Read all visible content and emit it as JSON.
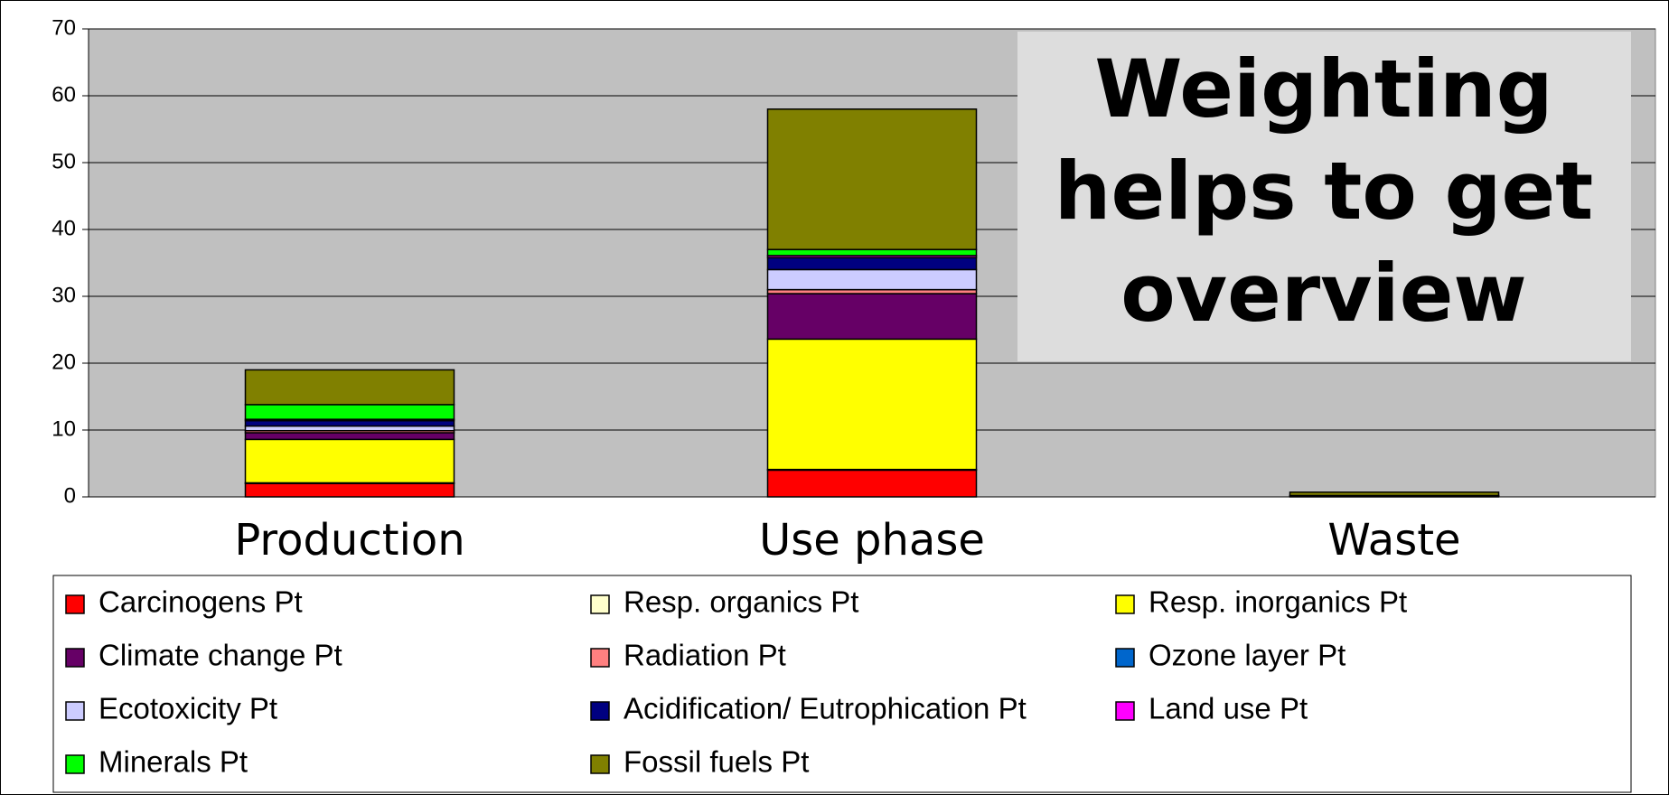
{
  "chart_data": {
    "type": "bar",
    "stacked": true,
    "annotation": [
      "Weighting",
      "helps to get",
      "overview"
    ],
    "categories": [
      "Production",
      "Use phase",
      "Waste"
    ],
    "ylim": [
      0,
      70
    ],
    "yticks": [
      0,
      10,
      20,
      30,
      40,
      50,
      60,
      70
    ],
    "grid": true,
    "series": [
      {
        "name": "Carcinogens Pt",
        "color": "#ff0000",
        "values": [
          2,
          4,
          0.1
        ]
      },
      {
        "name": "Resp. organics Pt",
        "color": "#ffffcc",
        "values": [
          0.1,
          0.1,
          0
        ]
      },
      {
        "name": "Resp. inorganics Pt",
        "color": "#ffff00",
        "values": [
          6.5,
          19.5,
          0.05
        ]
      },
      {
        "name": "Climate change Pt",
        "color": "#660066",
        "values": [
          1,
          6.8,
          0.05
        ]
      },
      {
        "name": "Radiation Pt",
        "color": "#ff8080",
        "values": [
          0.3,
          0.6,
          0
        ]
      },
      {
        "name": "Ozone layer Pt",
        "color": "#0066cc",
        "values": [
          0,
          0,
          0
        ]
      },
      {
        "name": "Ecotoxicity Pt",
        "color": "#ccccff",
        "values": [
          0.7,
          3,
          0
        ]
      },
      {
        "name": "Acidification/ Eutrophication Pt",
        "color": "#000080",
        "values": [
          0.8,
          1.8,
          0
        ]
      },
      {
        "name": "Land use Pt",
        "color": "#ff00ff",
        "values": [
          0.2,
          0.3,
          0
        ]
      },
      {
        "name": "Minerals Pt",
        "color": "#00ff00",
        "values": [
          2.2,
          0.9,
          0
        ]
      },
      {
        "name": "Fossil fuels Pt",
        "color": "#808000",
        "values": [
          5.2,
          21,
          0.5
        ]
      }
    ]
  }
}
